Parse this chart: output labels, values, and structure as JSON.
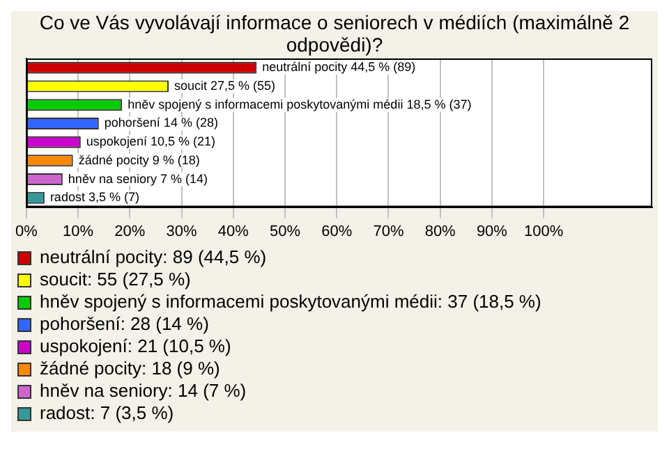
{
  "chart_data": {
    "type": "bar",
    "orientation": "horizontal",
    "stacked": true,
    "title": "Co ve Vás vyvolávají informace o seniorech v médiích (maximálně 2 odpovědi)?",
    "categories": [
      null,
      null,
      null,
      null,
      null,
      null,
      null,
      null
    ],
    "series": [
      {
        "name": "neutrální pocity: 89 (44,5 %)",
        "color": "#cc0000",
        "values": [
          44.5,
          null,
          null,
          null,
          null,
          null,
          null,
          null
        ],
        "value_labels": [
          "neutrální pocity 44,5 % (89)",
          null,
          null,
          null,
          null,
          null,
          null,
          null
        ]
      },
      {
        "name": "soucit: 55 (27,5 %)",
        "color": "#ffff00",
        "values": [
          null,
          27.5,
          null,
          null,
          null,
          null,
          null,
          null
        ],
        "value_labels": [
          null,
          "soucit 27,5 % (55)",
          null,
          null,
          null,
          null,
          null,
          null
        ]
      },
      {
        "name": "hněv spojený s informacemi poskytovanými médii: 37 (18,5 %)",
        "color": "#00cc00",
        "values": [
          null,
          null,
          18.5,
          null,
          null,
          null,
          null,
          null
        ],
        "value_labels": [
          null,
          null,
          "hněv spojený s informacemi poskytovanými médii 18,5 % (37)",
          null,
          null,
          null,
          null,
          null
        ]
      },
      {
        "name": "pohoršení: 28 (14 %)",
        "color": "#3366ff",
        "values": [
          null,
          null,
          null,
          14,
          null,
          null,
          null,
          null
        ],
        "value_labels": [
          null,
          null,
          null,
          "pohoršení 14 % (28)",
          null,
          null,
          null,
          null
        ]
      },
      {
        "name": "uspokojení: 21 (10,5 %)",
        "color": "#cc00cc",
        "values": [
          null,
          null,
          null,
          null,
          10.5,
          null,
          null,
          null
        ],
        "value_labels": [
          null,
          null,
          null,
          null,
          "uspokojení 10,5 % (21)",
          null,
          null,
          null
        ]
      },
      {
        "name": "žádné pocity: 18 (9 %)",
        "color": "#ff8800",
        "values": [
          null,
          null,
          null,
          null,
          null,
          9,
          null,
          null
        ],
        "value_labels": [
          null,
          null,
          null,
          null,
          null,
          "žádné pocity 9 % (18)",
          null,
          null
        ]
      },
      {
        "name": "hněv na seniory: 14 (7 %)",
        "color": "#cc66cc",
        "values": [
          null,
          null,
          null,
          null,
          null,
          null,
          7,
          null
        ],
        "value_labels": [
          null,
          null,
          null,
          null,
          null,
          null,
          "hněv na seniory 7 % (14)",
          null
        ]
      },
      {
        "name": "radost: 7 (3,5 %)",
        "color": "#339999",
        "values": [
          null,
          null,
          null,
          null,
          null,
          null,
          null,
          3.5
        ],
        "value_labels": [
          null,
          null,
          null,
          null,
          null,
          null,
          null,
          "radost 3,5 % (7)"
        ]
      }
    ],
    "xlim": [
      0,
      121
    ],
    "xticks": [
      {
        "value": 0,
        "label": "0%"
      },
      {
        "value": 10,
        "label": "10%"
      },
      {
        "value": 20,
        "label": "20%"
      },
      {
        "value": 30,
        "label": "30%"
      },
      {
        "value": 40,
        "label": "40%"
      },
      {
        "value": 50,
        "label": "50%"
      },
      {
        "value": 60,
        "label": "60%"
      },
      {
        "value": 70,
        "label": "70%"
      },
      {
        "value": 80,
        "label": "80%"
      },
      {
        "value": 90,
        "label": "90%"
      },
      {
        "value": 100,
        "label": "100%"
      }
    ],
    "grid": "x",
    "legend": "bottom"
  }
}
